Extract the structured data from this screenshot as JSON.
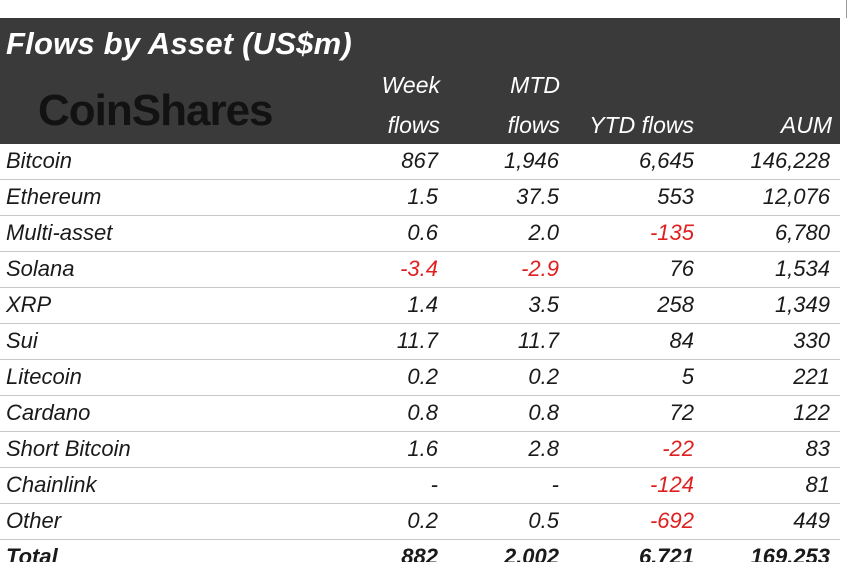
{
  "title": "Flows by Asset (US$m)",
  "logo": "CoinShares",
  "columns": {
    "week_line1": "Week",
    "week_line2": "flows",
    "mtd_line1": "MTD",
    "mtd_line2": "flows",
    "ytd": "YTD flows",
    "aum": "AUM"
  },
  "rows": [
    {
      "name": "Bitcoin",
      "week": "867",
      "mtd": "1,946",
      "ytd": "6,645",
      "aum": "146,228"
    },
    {
      "name": "Ethereum",
      "week": "1.5",
      "mtd": "37.5",
      "ytd": "553",
      "aum": "12,076"
    },
    {
      "name": "Multi-asset",
      "week": "0.6",
      "mtd": "2.0",
      "ytd": "-135",
      "aum": "6,780"
    },
    {
      "name": "Solana",
      "week": "-3.4",
      "mtd": "-2.9",
      "ytd": "76",
      "aum": "1,534"
    },
    {
      "name": "XRP",
      "week": "1.4",
      "mtd": "3.5",
      "ytd": "258",
      "aum": "1,349"
    },
    {
      "name": "Sui",
      "week": "11.7",
      "mtd": "11.7",
      "ytd": "84",
      "aum": "330"
    },
    {
      "name": "Litecoin",
      "week": "0.2",
      "mtd": "0.2",
      "ytd": "5",
      "aum": "221"
    },
    {
      "name": "Cardano",
      "week": "0.8",
      "mtd": "0.8",
      "ytd": "72",
      "aum": "122"
    },
    {
      "name": "Short Bitcoin",
      "week": "1.6",
      "mtd": "2.8",
      "ytd": "-22",
      "aum": "83"
    },
    {
      "name": "Chainlink",
      "week": "-",
      "mtd": "-",
      "ytd": "-124",
      "aum": "81"
    },
    {
      "name": "Other",
      "week": "0.2",
      "mtd": "0.5",
      "ytd": "-692",
      "aum": "449"
    }
  ],
  "total": {
    "name": "Total",
    "week": "882",
    "mtd": "2,002",
    "ytd": "6,721",
    "aum": "169,253"
  },
  "colors": {
    "header_bg": "#3a3a3a",
    "negative": "#e02020",
    "text": "#1a1a1a"
  }
}
